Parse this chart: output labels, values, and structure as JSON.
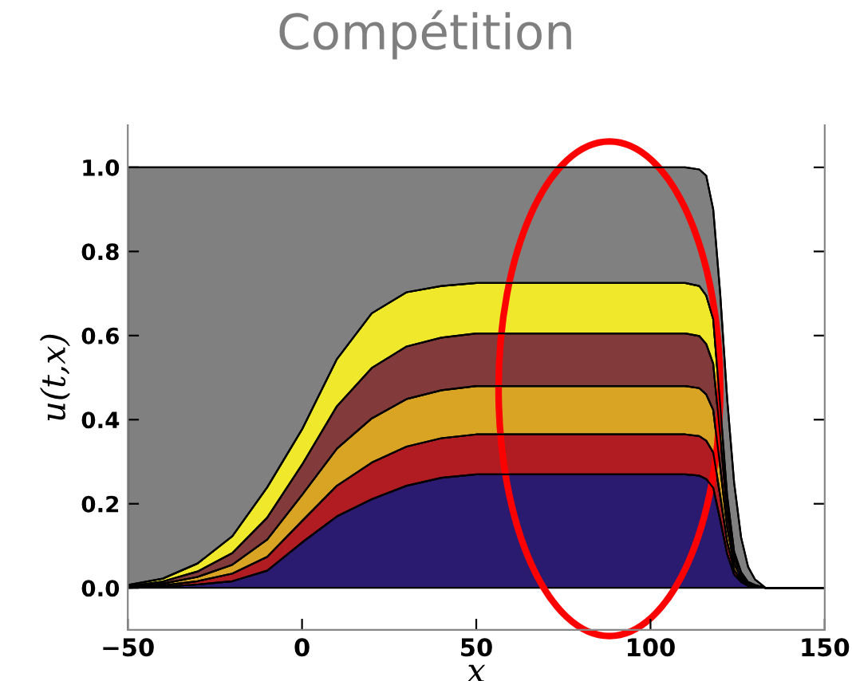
{
  "chart_data": {
    "type": "area",
    "stacked": true,
    "title": "Compétition",
    "xlabel": "x",
    "ylabel": "u(t,x)",
    "x": [
      -50,
      -40,
      -30,
      -20,
      -10,
      0,
      10,
      20,
      30,
      40,
      50,
      60,
      70,
      80,
      90,
      100,
      110,
      114,
      116,
      118,
      120,
      122,
      124,
      126,
      128,
      130,
      133,
      150
    ],
    "series": [
      {
        "color": "#2a1a70",
        "values": [
          0,
          0.003,
          0.008,
          0.016,
          0.041,
          0.108,
          0.17,
          0.211,
          0.243,
          0.262,
          0.27,
          0.27,
          0.27,
          0.27,
          0.27,
          0.27,
          0.27,
          0.267,
          0.259,
          0.238,
          0.162,
          0.081,
          0.032,
          0.014,
          0.005,
          0.003,
          0,
          0
        ]
      },
      {
        "color": "#b01c22",
        "values": [
          0.001,
          0.003,
          0.008,
          0.018,
          0.033,
          0.051,
          0.073,
          0.087,
          0.093,
          0.094,
          0.095,
          0.095,
          0.095,
          0.095,
          0.095,
          0.095,
          0.095,
          0.094,
          0.091,
          0.084,
          0.057,
          0.029,
          0.011,
          0.005,
          0.002,
          0.001,
          0,
          0
        ]
      },
      {
        "color": "#d9a424",
        "values": [
          0.001,
          0.004,
          0.01,
          0.021,
          0.041,
          0.062,
          0.088,
          0.105,
          0.113,
          0.114,
          0.115,
          0.115,
          0.115,
          0.115,
          0.115,
          0.115,
          0.115,
          0.114,
          0.11,
          0.101,
          0.069,
          0.035,
          0.014,
          0.006,
          0.002,
          0.001,
          0,
          0
        ]
      },
      {
        "color": "#833a3a",
        "values": [
          0.002,
          0.005,
          0.013,
          0.028,
          0.052,
          0.072,
          0.101,
          0.12,
          0.125,
          0.125,
          0.125,
          0.125,
          0.125,
          0.125,
          0.125,
          0.125,
          0.125,
          0.124,
          0.12,
          0.11,
          0.075,
          0.038,
          0.015,
          0.006,
          0.003,
          0.001,
          0,
          0
        ]
      },
      {
        "color": "#f0e82a",
        "values": [
          0.003,
          0.007,
          0.019,
          0.04,
          0.072,
          0.084,
          0.112,
          0.13,
          0.129,
          0.123,
          0.12,
          0.12,
          0.12,
          0.12,
          0.12,
          0.12,
          0.12,
          0.119,
          0.115,
          0.106,
          0.072,
          0.036,
          0.014,
          0.006,
          0.002,
          0.001,
          0,
          0
        ]
      },
      {
        "color": "#808080",
        "values": [
          0.993,
          0.978,
          0.942,
          0.877,
          0.761,
          0.623,
          0.456,
          0.347,
          0.297,
          0.282,
          0.275,
          0.275,
          0.275,
          0.275,
          0.275,
          0.275,
          0.275,
          0.277,
          0.285,
          0.261,
          0.265,
          0.231,
          0.164,
          0.083,
          0.036,
          0.013,
          0,
          0
        ]
      }
    ],
    "xlim": [
      -50,
      150
    ],
    "ylim": [
      -0.1,
      1.1
    ],
    "xticks": [
      {
        "value": -50,
        "label": "−50"
      },
      0,
      50,
      100,
      150
    ],
    "yticks": [
      {
        "value": 0,
        "label": "0.0"
      },
      {
        "value": 0.2,
        "label": "0.2"
      },
      {
        "value": 0.4,
        "label": "0.4"
      },
      {
        "value": 0.6,
        "label": "0.6"
      },
      {
        "value": 0.8,
        "label": "0.8"
      },
      {
        "value": 1.0,
        "label": "1.0"
      }
    ],
    "grid": false,
    "legend": false
  }
}
